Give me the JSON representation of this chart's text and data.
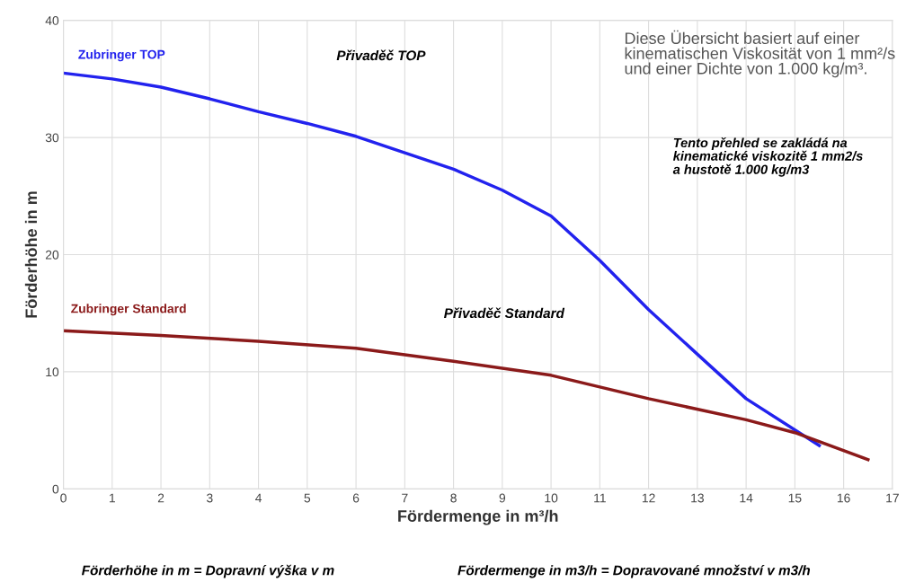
{
  "chart_data": {
    "type": "line",
    "xlabel": "Fördermenge in m³/h",
    "ylabel": "Förderhöhe in m",
    "series": [
      {
        "name": "Zubringer TOP",
        "color": "#2222ee",
        "x": [
          0,
          1,
          2,
          3,
          4,
          5,
          6,
          7,
          8,
          9,
          10,
          11,
          12,
          13,
          14,
          15.5
        ],
        "values": [
          35.5,
          35.0,
          34.3,
          33.3,
          32.2,
          31.2,
          30.1,
          28.7,
          27.3,
          25.5,
          23.3,
          19.5,
          15.3,
          11.5,
          7.7,
          3.7
        ]
      },
      {
        "name": "Zubringer Standard",
        "color": "#8b1a1a",
        "x": [
          0,
          2,
          4,
          6,
          8,
          10,
          12,
          14,
          15,
          16.5
        ],
        "values": [
          13.5,
          13.1,
          12.6,
          12.0,
          10.9,
          9.7,
          7.7,
          5.9,
          4.8,
          2.5
        ]
      }
    ],
    "annotations": [
      "Přivaděč TOP",
      "Přivaděč Standard",
      "Diese Übersicht basiert auf einer\nkinematischen Viskosität von 1 mm²/s\nund einer Dichte von 1.000 kg/m³.",
      "Tento přehled se zakládá na\nkinematické viskozitě 1 mm2/s\na hustotě 1.000 kg/m3",
      "Förderhöhe in m = Dopravní výška v m",
      "Fördermenge in m3/h = Dopravované množství v m3/h"
    ],
    "xlim": [
      0,
      17
    ],
    "ylim": [
      0,
      40
    ],
    "xticks": [
      0,
      1,
      2,
      3,
      4,
      5,
      6,
      7,
      8,
      9,
      10,
      11,
      12,
      13,
      14,
      15,
      16,
      17
    ],
    "yticks": [
      0,
      10,
      20,
      30,
      40
    ],
    "grid": true,
    "line_style": "solid",
    "marker": "none",
    "legend": false
  }
}
